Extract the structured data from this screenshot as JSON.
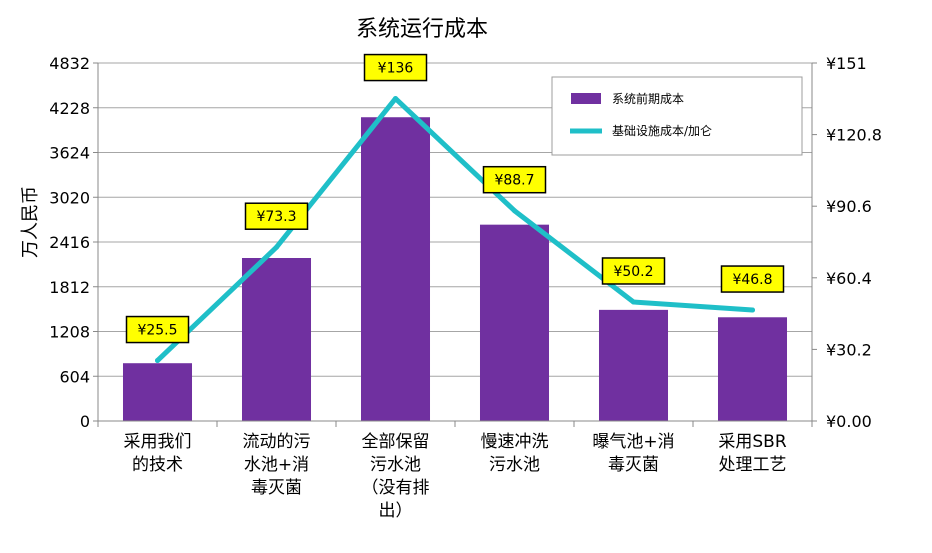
{
  "chart_data": {
    "type": "bar",
    "title": "系统运行成本",
    "ylabel": "万人民币",
    "categories": [
      [
        "采用我们",
        "的技术"
      ],
      [
        "流动的污",
        "水池+消",
        "毒灭菌"
      ],
      [
        "全部保留",
        "污水池",
        "（没有排",
        "出）"
      ],
      [
        "慢速冲洗",
        "污水池"
      ],
      [
        "曝气池+消",
        "毒灭菌"
      ],
      [
        "采用SBR",
        "处理工艺"
      ]
    ],
    "series": [
      {
        "name": "系统前期成本",
        "type": "bar",
        "axis": "left",
        "color": "#7030A0",
        "values": [
          780,
          2200,
          4100,
          2650,
          1500,
          1400
        ]
      },
      {
        "name": "基础设施成本/加仑",
        "type": "line",
        "axis": "right",
        "color": "#1FBFC8",
        "values": [
          25.5,
          73.3,
          136,
          88.7,
          50.2,
          46.8
        ],
        "labels": [
          "¥25.5",
          "¥73.3",
          "¥136",
          "¥88.7",
          "¥50.2",
          "¥46.8"
        ]
      }
    ],
    "y_left": {
      "ylim": [
        0,
        4832
      ],
      "ticks": [
        "0",
        "604",
        "1208",
        "1812",
        "2416",
        "3020",
        "3624",
        "4228",
        "4832"
      ]
    },
    "y_right": {
      "ylim": [
        0,
        151
      ],
      "ticks": [
        "¥0.00",
        "¥30.2",
        "¥60.4",
        "¥90.6",
        "¥120.8",
        "¥151"
      ]
    },
    "grid": true,
    "legend_position": "top-right",
    "data_label_color": "#FFFF00"
  }
}
